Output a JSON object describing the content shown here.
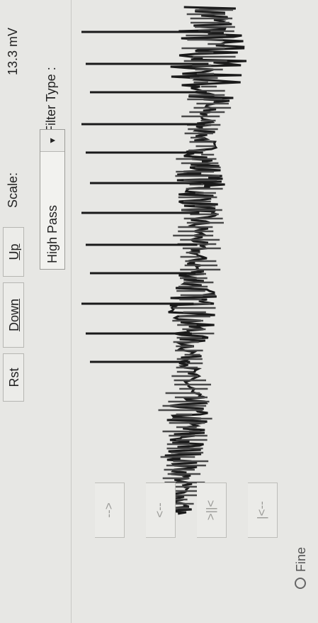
{
  "filter": {
    "label": "Filter Type :",
    "selected": "High Pass"
  },
  "scale": {
    "value_text": "13.3 mV",
    "label": "Scale:",
    "up_label": "Up",
    "down_label": "Down",
    "reset_label": "Rst"
  },
  "mode": {
    "fine_label": "Fine"
  },
  "navigation": {
    "first_label": "|<--",
    "prev_label": ">||<",
    "back_label": "<--",
    "next_label": "-->"
  },
  "colors": {
    "trace": "#1a1a1a",
    "trace_light": "#4a4a4a",
    "panel": "#e7e7e4"
  }
}
